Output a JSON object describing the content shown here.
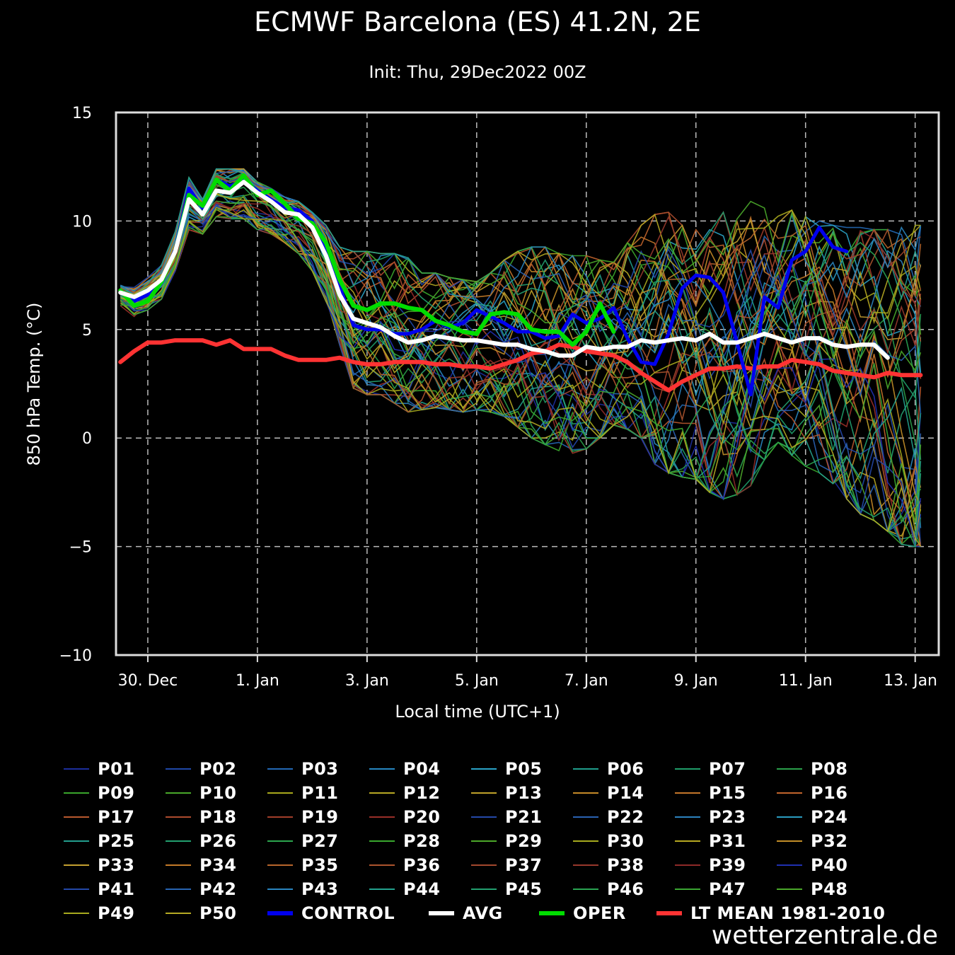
{
  "brand": "wetterzentrale.de",
  "chart_data": {
    "type": "line",
    "title": "ECMWF Barcelona (ES) 41.2N, 2E",
    "subtitle": "Init: Thu, 29Dec2022 00Z",
    "xlabel": "Local time (UTC+1)",
    "ylabel": "850 hPa Temp. (°C)",
    "ylim": [
      -10,
      15
    ],
    "yticks": [
      15,
      10,
      5,
      0,
      -5,
      -10
    ],
    "xlim_days": [
      -0.58,
      14.43
    ],
    "xticks": [
      {
        "label": "30. Dec",
        "day": 0
      },
      {
        "label": "1. Jan",
        "day": 2
      },
      {
        "label": "3. Jan",
        "day": 4
      },
      {
        "label": "5. Jan",
        "day": 6
      },
      {
        "label": "7. Jan",
        "day": 8
      },
      {
        "label": "9. Jan",
        "day": 10
      },
      {
        "label": "11. Jan",
        "day": 12
      },
      {
        "label": "13. Jan",
        "day": 14
      }
    ],
    "grid": true,
    "x_days": [
      -0.5,
      -0.25,
      0,
      0.25,
      0.5,
      0.75,
      1,
      1.25,
      1.5,
      1.75,
      2,
      2.25,
      2.5,
      2.75,
      3,
      3.25,
      3.5,
      3.75,
      4,
      4.25,
      4.5,
      4.75,
      5,
      5.25,
      5.5,
      5.75,
      6,
      6.25,
      6.5,
      6.75,
      7,
      7.25,
      7.5,
      7.75,
      8,
      8.25,
      8.5,
      8.75,
      9,
      9.25,
      9.5,
      9.75,
      10,
      10.25,
      10.5,
      10.75,
      11,
      11.25,
      11.5,
      11.75,
      12,
      12.25,
      12.5,
      12.75,
      13,
      13.25,
      13.5,
      13.75,
      14,
      14.1
    ],
    "series": [
      {
        "name": "AVG",
        "color": "#ffffff",
        "width": 6,
        "values": [
          6.7,
          6.5,
          6.8,
          7.3,
          8.6,
          11.0,
          10.3,
          11.4,
          11.3,
          11.8,
          11.3,
          10.9,
          10.4,
          10.3,
          9.7,
          8.4,
          6.6,
          5.5,
          5.3,
          5.1,
          4.7,
          4.4,
          4.5,
          4.7,
          4.6,
          4.5,
          4.5,
          4.4,
          4.3,
          4.3,
          4.1,
          4.0,
          3.8,
          3.8,
          4.2,
          4.1,
          4.2,
          4.2,
          4.5,
          4.4,
          4.5,
          4.6,
          4.5,
          4.8,
          4.4,
          4.4,
          4.6,
          4.8,
          4.6,
          4.4,
          4.6,
          4.6,
          4.3,
          4.2,
          4.3,
          4.3,
          3.7
        ]
      },
      {
        "name": "CONTROL",
        "color": "#0000ee",
        "width": 5,
        "values": [
          6.7,
          6.3,
          6.6,
          7.2,
          8.7,
          11.5,
          10.6,
          11.9,
          11.6,
          11.9,
          11.4,
          11.0,
          10.6,
          10.5,
          10.0,
          8.8,
          7.0,
          5.2,
          5.0,
          5.0,
          4.8,
          4.8,
          5.0,
          5.4,
          5.1,
          5.3,
          5.9,
          5.6,
          5.3,
          4.9,
          4.9,
          4.6,
          4.7,
          5.7,
          5.3,
          5.5,
          6.0,
          4.6,
          3.5,
          3.4,
          4.8,
          6.9,
          7.5,
          7.4,
          6.7,
          4.4,
          2.0,
          6.5,
          6.0,
          8.2,
          8.6,
          9.7,
          8.8,
          8.6
        ]
      },
      {
        "name": "OPER",
        "color": "#00dd00",
        "width": 6,
        "values": [
          6.8,
          6.1,
          6.3,
          7.2,
          8.6,
          11.2,
          10.7,
          11.9,
          11.4,
          12.1,
          11.2,
          11.4,
          10.8,
          10.1,
          9.9,
          9.0,
          7.3,
          6.1,
          5.9,
          6.2,
          6.2,
          6.0,
          5.9,
          5.4,
          5.2,
          4.9,
          4.8,
          5.7,
          5.8,
          5.7,
          5.0,
          4.9,
          4.9,
          4.3,
          4.9,
          6.2,
          4.9
        ]
      },
      {
        "name": "LT MEAN 1981-2010",
        "color": "#ff3333",
        "width": 6,
        "values": [
          3.5,
          4.0,
          4.4,
          4.4,
          4.5,
          4.5,
          4.5,
          4.3,
          4.5,
          4.1,
          4.1,
          4.1,
          3.8,
          3.6,
          3.6,
          3.6,
          3.7,
          3.5,
          3.4,
          3.4,
          3.5,
          3.5,
          3.5,
          3.4,
          3.4,
          3.3,
          3.3,
          3.2,
          3.4,
          3.6,
          3.9,
          4.0,
          4.3,
          4.2,
          4.0,
          3.9,
          3.8,
          3.5,
          3.0,
          2.6,
          2.2,
          2.6,
          2.9,
          3.2,
          3.2,
          3.3,
          3.2,
          3.3,
          3.3,
          3.6,
          3.5,
          3.4,
          3.1,
          3.0,
          2.9,
          2.8,
          3.0,
          2.9,
          2.9,
          2.9
        ]
      }
    ],
    "ensemble_spread": {
      "members": 50,
      "low": [
        6.0,
        5.6,
        5.9,
        6.4,
        7.7,
        9.6,
        9.4,
        10.2,
        10.1,
        10.1,
        9.6,
        9.4,
        9.0,
        8.5,
        7.7,
        6.3,
        4.3,
        2.3,
        2.0,
        2.0,
        1.6,
        1.2,
        1.3,
        1.4,
        1.3,
        1.2,
        1.3,
        1.2,
        1.0,
        0.5,
        0.0,
        -0.3,
        -0.6,
        -0.7,
        -0.5,
        0.0,
        0.6,
        0.4,
        0.0,
        -1.2,
        -1.6,
        -1.8,
        -1.9,
        -2.5,
        -2.8,
        -2.6,
        -2.2,
        -1.0,
        -0.2,
        -0.8,
        -1.3,
        -1.6,
        -2.1,
        -2.8,
        -3.5,
        -3.8,
        -4.3,
        -4.9,
        -5.0,
        -5.0
      ],
      "high": [
        7.2,
        7.0,
        7.4,
        8.0,
        9.5,
        12.0,
        11.0,
        12.4,
        12.4,
        12.4,
        11.8,
        11.5,
        11.1,
        10.9,
        10.4,
        9.8,
        8.8,
        8.6,
        8.6,
        8.5,
        8.5,
        8.3,
        7.6,
        7.6,
        7.4,
        7.3,
        7.2,
        7.6,
        8.2,
        8.6,
        8.8,
        8.8,
        8.5,
        8.4,
        8.4,
        8.2,
        8.1,
        9.0,
        9.8,
        10.3,
        10.4,
        9.8,
        9.6,
        10.0,
        10.4,
        10.8,
        10.9,
        10.6,
        10.3,
        10.5,
        10.2,
        10.0,
        9.8,
        9.7,
        9.7,
        9.6,
        9.6,
        9.7,
        9.8,
        9.8
      ]
    }
  },
  "legend": {
    "members": [
      "P01",
      "P02",
      "P03",
      "P04",
      "P05",
      "P06",
      "P07",
      "P08",
      "P09",
      "P10",
      "P11",
      "P12",
      "P13",
      "P14",
      "P15",
      "P16",
      "P17",
      "P18",
      "P19",
      "P20",
      "P21",
      "P22",
      "P23",
      "P24",
      "P25",
      "P26",
      "P27",
      "P28",
      "P29",
      "P30",
      "P31",
      "P32",
      "P33",
      "P34",
      "P35",
      "P36",
      "P37",
      "P38",
      "P39",
      "P40",
      "P41",
      "P42",
      "P43",
      "P44",
      "P45",
      "P46",
      "P47",
      "P48",
      "P49",
      "P50"
    ],
    "member_colors": [
      "#1c2e9c",
      "#1f48a8",
      "#2369b5",
      "#2787c2",
      "#2aa3c7",
      "#1f9e8c",
      "#1f9e6a",
      "#2aa04a",
      "#3aa62c",
      "#49a82a",
      "#a8a81c",
      "#b8a824",
      "#c0a22a",
      "#c58a28",
      "#c4762a",
      "#c2642c",
      "#b8582e",
      "#ad4b2e",
      "#a33e2a",
      "#9a2f28",
      "#2548a8",
      "#2a62b2",
      "#2c82be",
      "#2a9cc0",
      "#239e8e",
      "#23a070",
      "#2ca64e",
      "#3aa82e",
      "#4ca82a",
      "#a6aa1e",
      "#b6a822",
      "#c38e28",
      "#c4a030",
      "#c47a28",
      "#b8662c",
      "#ad542e",
      "#a3482e",
      "#98382c",
      "#8e2a28",
      "#2030b0",
      "#2448a8",
      "#2864b2",
      "#2a86c0",
      "#23a28e",
      "#22a070",
      "#2aa452",
      "#3aa632",
      "#4aa82a",
      "#a8aa1e",
      "#b6aa24"
    ],
    "specials": [
      {
        "label": "CONTROL",
        "color": "#0000ee"
      },
      {
        "label": "AVG",
        "color": "#ffffff"
      },
      {
        "label": "OPER",
        "color": "#00dd00"
      },
      {
        "label": "LT MEAN 1981-2010",
        "color": "#ff3333"
      }
    ]
  }
}
